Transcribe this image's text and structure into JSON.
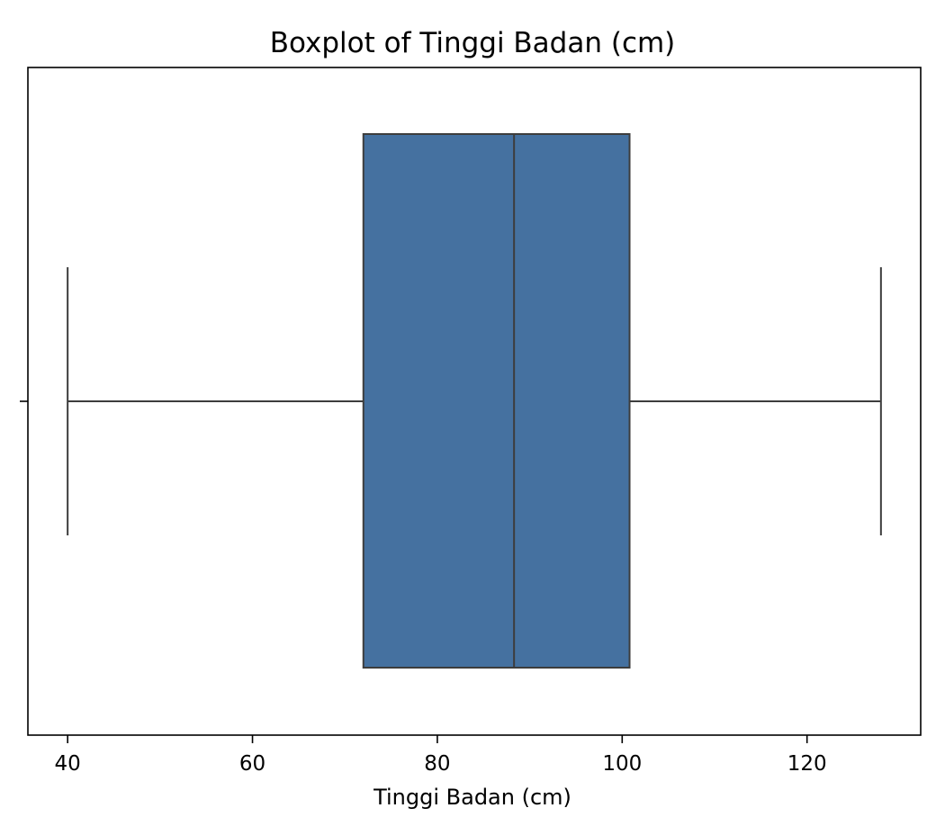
{
  "chart_data": {
    "type": "boxplot",
    "orientation": "horizontal",
    "title": "Boxplot of Tinggi Badan (cm)",
    "xlabel": "Tinggi Badan (cm)",
    "ylabel": "",
    "xlim": [
      35.7,
      132.3
    ],
    "xticks": [
      40,
      60,
      80,
      100,
      120
    ],
    "xtick_labels": [
      "40",
      "60",
      "80",
      "100",
      "120"
    ],
    "grid": false,
    "box": {
      "whisker_low": 40,
      "q1": 72,
      "median": 88.3,
      "q3": 100.8,
      "whisker_high": 128,
      "outliers": []
    },
    "colors": {
      "box_fill": "#4571a0",
      "line": "#3d3d3d",
      "axes": "#000000"
    }
  }
}
